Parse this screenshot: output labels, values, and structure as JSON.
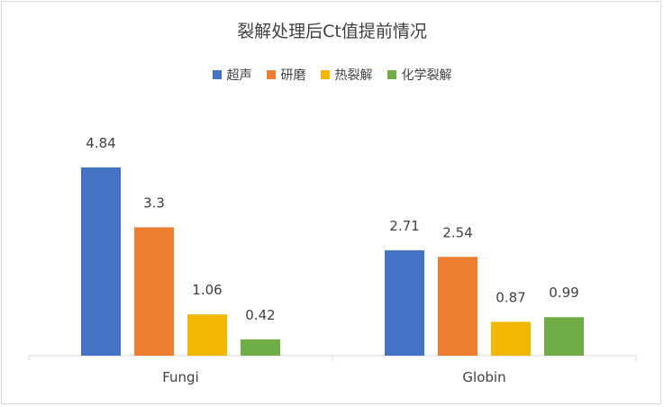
{
  "chart_data": {
    "type": "bar",
    "title": "裂解处理后Ct值提前情况",
    "categories": [
      "Fungi",
      "Globin"
    ],
    "series": [
      {
        "name": "超声",
        "values": [
          4.84,
          2.71
        ],
        "color": "#4472c4"
      },
      {
        "name": "研磨",
        "values": [
          3.3,
          2.54
        ],
        "color": "#ed7d31"
      },
      {
        "name": "热裂解",
        "values": [
          1.06,
          0.87
        ],
        "color": "#f2b800"
      },
      {
        "name": "化学裂解",
        "values": [
          0.42,
          0.99
        ],
        "color": "#70ad47"
      }
    ],
    "data_labels": [
      [
        "4.84",
        "2.71"
      ],
      [
        "3.3",
        "2.54"
      ],
      [
        "1.06",
        "0.87"
      ],
      [
        "0.42",
        "0.99"
      ]
    ],
    "ylim": [
      0,
      5.5
    ],
    "legend_position": "top",
    "grid": false
  }
}
